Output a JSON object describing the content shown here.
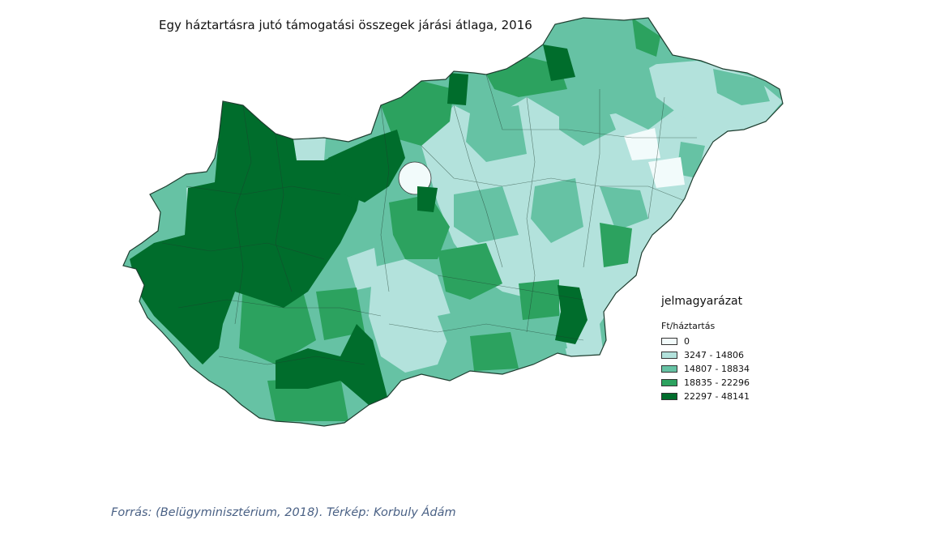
{
  "title": "Egy háztartásra jutó támogatási összegek járási átlaga, 2016",
  "legend": {
    "title": "jelmagyarázat",
    "subtitle": "Ft/háztartás",
    "items": [
      {
        "label": "0",
        "color": "#f2fbfb"
      },
      {
        "label": "3247 - 14806",
        "color": "#b3e2dc"
      },
      {
        "label": "14807 - 18834",
        "color": "#66c2a4"
      },
      {
        "label": "18835 - 22296",
        "color": "#2ca25f"
      },
      {
        "label": "22297 - 48141",
        "color": "#006d2c"
      }
    ]
  },
  "source": "Forrás: (Belügyminisztérium, 2018). Térkép: Korbuly Ádám"
}
